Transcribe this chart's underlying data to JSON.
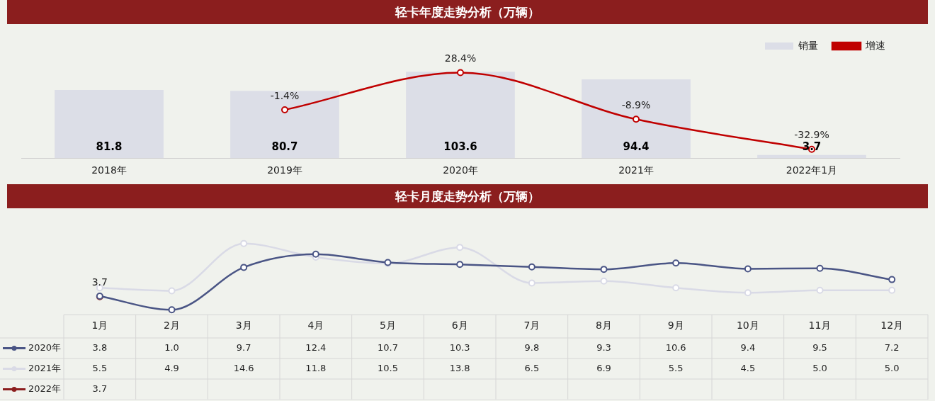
{
  "chart_data": [
    {
      "type": "bar",
      "title": "轻卡年度走势分析（万辆）",
      "categories": [
        "2018年",
        "2019年",
        "2020年",
        "2021年",
        "2022年1月"
      ],
      "series": [
        {
          "name": "销量",
          "color": "#dcdee7",
          "values": [
            81.8,
            80.7,
            103.6,
            94.4,
            3.7
          ],
          "value_labels": [
            "81.8",
            "80.7",
            "103.6",
            "94.4",
            "3.7"
          ]
        },
        {
          "name": "增速",
          "type": "line",
          "axis": "y2",
          "color": "#c00000",
          "values": [
            null,
            -1.4,
            28.4,
            -8.9,
            -32.9
          ],
          "value_labels": [
            null,
            "-1.4%",
            "28.4%",
            "-8.9%",
            "-32.9%"
          ]
        }
      ],
      "legend": "top right",
      "tick_labels": "x",
      "marker": "circle",
      "grid": false
    },
    {
      "type": "line",
      "title": "轻卡月度走势分析（万辆）",
      "categories": [
        "1月",
        "2月",
        "3月",
        "4月",
        "5月",
        "6月",
        "7月",
        "8月",
        "9月",
        "10月",
        "11月",
        "12月"
      ],
      "series": [
        {
          "name": "2020年",
          "color": "#4a5585",
          "values": [
            3.8,
            1.0,
            9.7,
            12.4,
            10.7,
            10.3,
            9.8,
            9.3,
            10.6,
            9.4,
            9.5,
            7.2
          ],
          "value_labels": [
            "3.8",
            "1.0",
            "9.7",
            "12.4",
            "10.7",
            "10.3",
            "9.8",
            "9.3",
            "10.6",
            "9.4",
            "9.5",
            "7.2"
          ]
        },
        {
          "name": "2021年",
          "color": "#d9dae6",
          "values": [
            5.5,
            4.9,
            14.6,
            11.8,
            10.5,
            13.8,
            6.5,
            6.9,
            5.5,
            4.5,
            5.0,
            5.0
          ],
          "value_labels": [
            "5.5",
            "4.9",
            "14.6",
            "11.8",
            "10.5",
            "13.8",
            "6.5",
            "6.9",
            "5.5",
            "4.5",
            "5.0",
            "5.0"
          ]
        },
        {
          "name": "2022年",
          "color": "#8b1e1e",
          "values": [
            3.7,
            null,
            null,
            null,
            null,
            null,
            null,
            null,
            null,
            null,
            null,
            null
          ]
        }
      ],
      "annotations": [
        "3.7"
      ],
      "legend": "bottom left",
      "tick_labels": "x",
      "marker": "circle",
      "data_labels": true,
      "grid": false
    }
  ]
}
